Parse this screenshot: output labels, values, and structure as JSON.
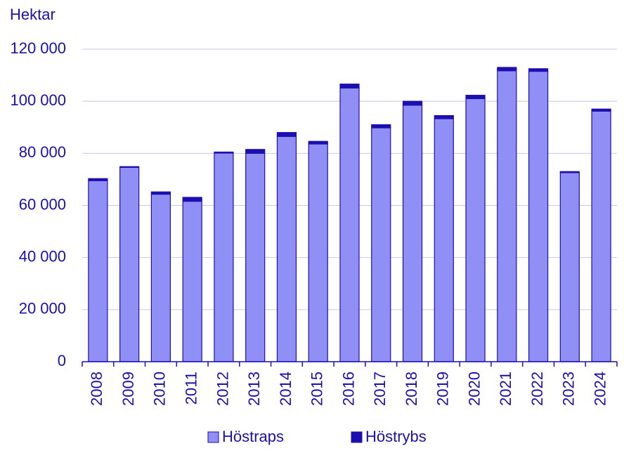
{
  "chart_data": {
    "type": "stacked_bar",
    "y_axis_label": "Hektar",
    "categories": [
      "2008",
      "2009",
      "2010",
      "2011",
      "2012",
      "2013",
      "2014",
      "2015",
      "2016",
      "2017",
      "2018",
      "2019",
      "2020",
      "2021",
      "2022",
      "2023",
      "2024"
    ],
    "series": [
      {
        "name": "Höstraps",
        "color": "#8f8ff5",
        "values": [
          69500,
          74600,
          64300,
          61600,
          80100,
          80000,
          86500,
          83600,
          105100,
          89800,
          98500,
          93300,
          101000,
          111700,
          111500,
          72600,
          96200
        ]
      },
      {
        "name": "Höstrybs",
        "color": "#1c0fb0",
        "values": [
          800,
          300,
          900,
          1500,
          400,
          1500,
          1500,
          1000,
          1500,
          1200,
          1500,
          1200,
          1300,
          1300,
          1000,
          400,
          800
        ]
      }
    ],
    "ylim": [
      0,
      120000
    ],
    "yticks": [
      0,
      {
        "value": 20000,
        "label": "20 000"
      },
      {
        "value": 40000,
        "label": "40 000"
      },
      {
        "value": 60000,
        "label": "60 000"
      },
      {
        "value": 80000,
        "label": "80 000"
      },
      {
        "value": 100000,
        "label": "100 000"
      },
      {
        "value": 120000,
        "label": "120 000"
      }
    ],
    "grid": true,
    "legend": "bottom"
  }
}
